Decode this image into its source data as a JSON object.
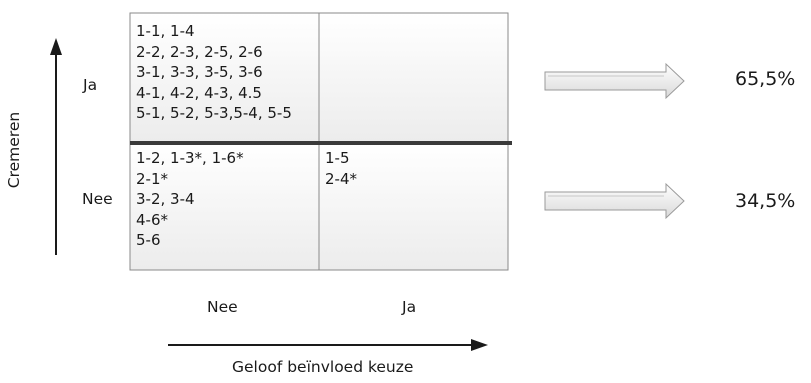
{
  "y_axis": {
    "title": "Cremeren",
    "ja": "Ja",
    "nee": "Nee"
  },
  "x_axis": {
    "title": "Geloof beïnvloed keuze",
    "nee": "Nee",
    "ja": "Ja"
  },
  "cells": {
    "top_left": [
      "1-1, 1-4",
      "2-2, 2-3, 2-5, 2-6",
      "3-1, 3-3, 3-5, 3-6",
      "4-1, 4-2,  4-3, 4.5",
      "5-1, 5-2, 5-3,5-4, 5-5"
    ],
    "top_right": [],
    "bottom_left": [
      "1-2, 1-3*, 1-6*",
      "2-1*",
      "3-2, 3-4",
      "4-6*",
      "5-6"
    ],
    "bottom_right": [
      "1-5",
      "2-4*"
    ]
  },
  "results": {
    "ja_percent": "65,5%",
    "nee_percent": "34,5%"
  }
}
